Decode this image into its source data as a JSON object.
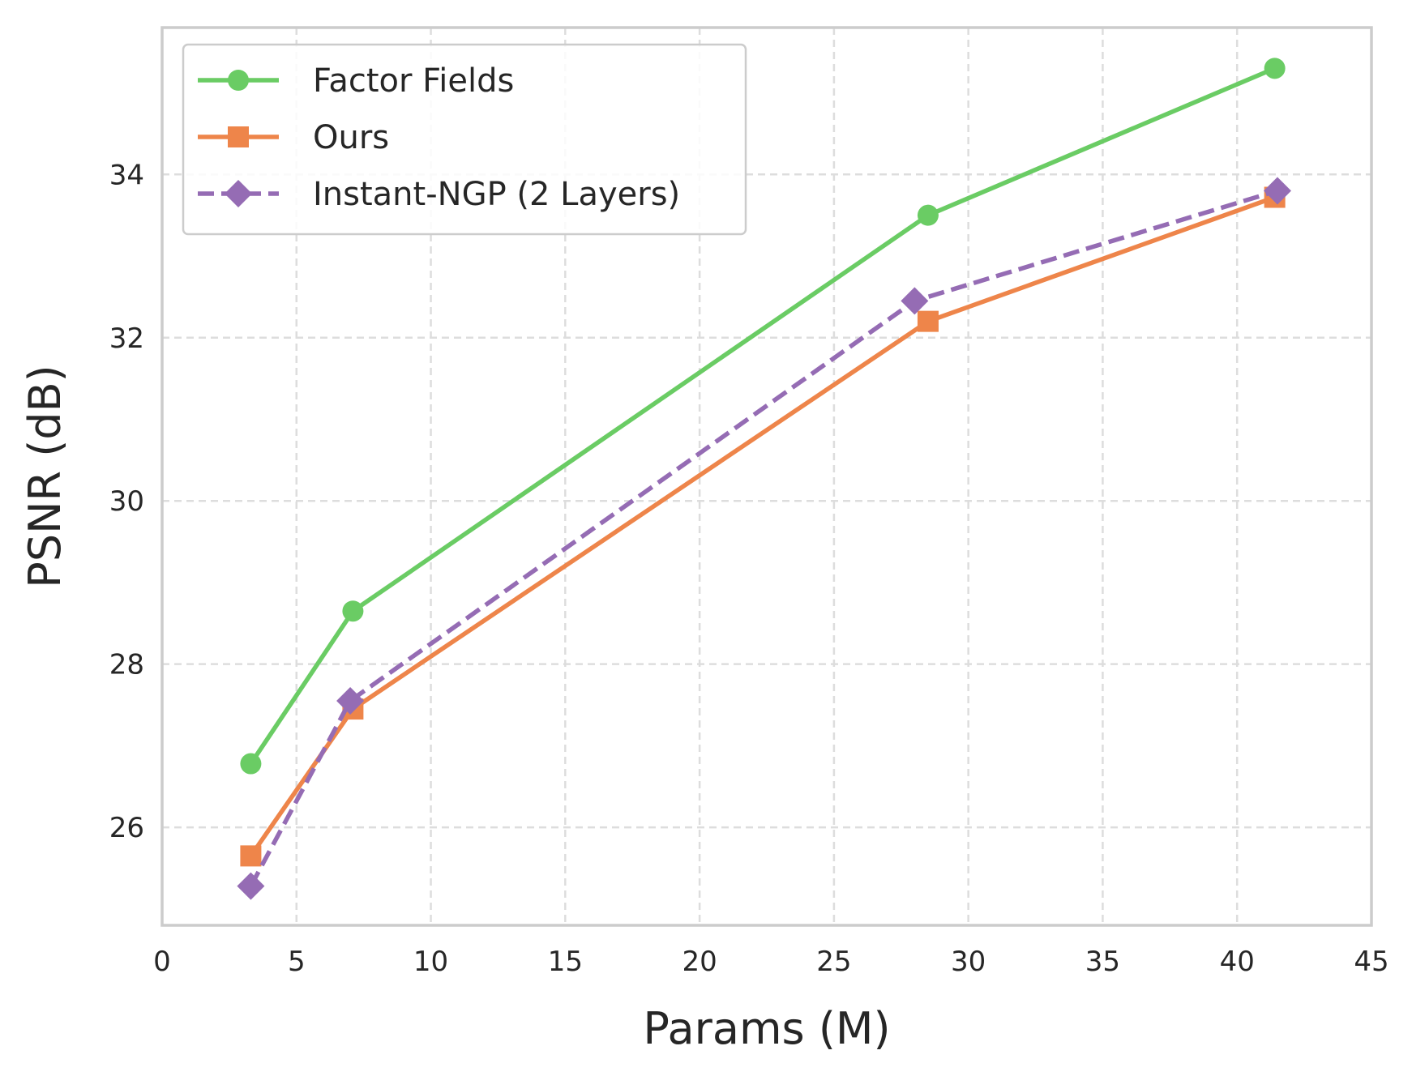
{
  "chart_data": {
    "type": "line",
    "title": "",
    "xlabel": "Params (M)",
    "ylabel": "PSNR (dB)",
    "xlim": [
      0,
      45
    ],
    "ylim": [
      24.8,
      35.8
    ],
    "xticks": [
      0,
      5,
      10,
      15,
      20,
      25,
      30,
      35,
      40,
      45
    ],
    "yticks": [
      26,
      28,
      30,
      32,
      34
    ],
    "grid": true,
    "legend_position": "top-left",
    "series": [
      {
        "name": "Factor Fields",
        "color": "#6acc64",
        "marker": "circle",
        "linestyle": "solid",
        "x": [
          3.3,
          7.1,
          28.5,
          41.4
        ],
        "y": [
          26.78,
          28.65,
          33.5,
          35.3
        ]
      },
      {
        "name": "Ours",
        "color": "#ee854a",
        "marker": "square",
        "linestyle": "solid",
        "x": [
          3.3,
          7.1,
          28.5,
          41.4
        ],
        "y": [
          25.65,
          27.45,
          32.2,
          33.72
        ]
      },
      {
        "name": "Instant-NGP (2 Layers)",
        "color": "#956cb4",
        "marker": "diamond",
        "linestyle": "dashed",
        "x": [
          3.3,
          7.0,
          28.0,
          41.5
        ],
        "y": [
          25.28,
          27.55,
          32.45,
          33.8
        ]
      }
    ]
  }
}
